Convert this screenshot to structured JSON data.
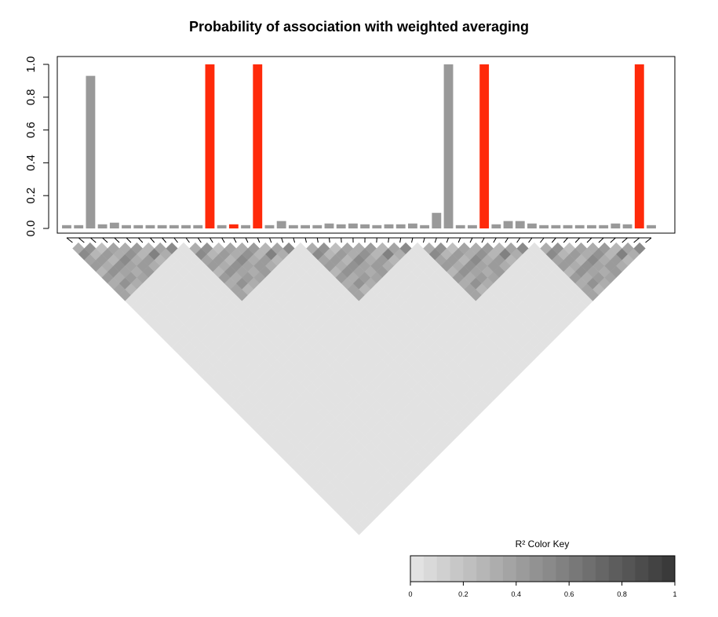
{
  "chart_data": [
    {
      "type": "bar",
      "title": "Probability of association with weighted averaging",
      "xlabel": "",
      "ylabel": "",
      "ylim": [
        0,
        1.0
      ],
      "y_ticks": [
        "0.0",
        "0.2",
        "0.4",
        "0.6",
        "0.8",
        "1.0"
      ],
      "colors": {
        "default": "#999999",
        "highlight": "#FF2A0A"
      },
      "values": [
        0.02,
        0.02,
        0.93,
        0.025,
        0.035,
        0.02,
        0.02,
        0.02,
        0.02,
        0.02,
        0.02,
        0.02,
        1.0,
        0.02,
        0.025,
        0.02,
        1.0,
        0.02,
        0.045,
        0.02,
        0.02,
        0.02,
        0.03,
        0.025,
        0.03,
        0.025,
        0.02,
        0.025,
        0.025,
        0.03,
        0.02,
        0.095,
        1.0,
        0.02,
        0.02,
        1.0,
        0.025,
        0.045,
        0.045,
        0.03,
        0.02,
        0.02,
        0.02,
        0.02,
        0.02,
        0.02,
        0.03,
        0.025,
        1.0,
        0.02
      ],
      "highlight": [
        false,
        false,
        false,
        false,
        false,
        false,
        false,
        false,
        false,
        false,
        false,
        false,
        true,
        false,
        true,
        false,
        true,
        false,
        false,
        false,
        false,
        false,
        false,
        false,
        false,
        false,
        false,
        false,
        false,
        false,
        false,
        false,
        false,
        false,
        false,
        true,
        false,
        false,
        false,
        false,
        false,
        false,
        false,
        false,
        false,
        false,
        false,
        false,
        true,
        false
      ]
    },
    {
      "type": "heatmap",
      "n_snps": 50,
      "blocks": [
        {
          "start": 0,
          "end": 9
        },
        {
          "start": 10,
          "end": 19
        },
        {
          "start": 20,
          "end": 29
        },
        {
          "start": 30,
          "end": 39
        },
        {
          "start": 40,
          "end": 49
        }
      ],
      "within_block_r2": [
        [
          0.32,
          0.45,
          0.22,
          0.38,
          0.3,
          0.42,
          0.25,
          0.35,
          0.52
        ],
        [
          0.5,
          0.28,
          0.4,
          0.33,
          0.47,
          0.26,
          0.55,
          0.31
        ],
        [
          0.36,
          0.44,
          0.29,
          0.51,
          0.34,
          0.4,
          0.27
        ],
        [
          0.41,
          0.3,
          0.48,
          0.35,
          0.43,
          0.32
        ],
        [
          0.28,
          0.46,
          0.38,
          0.3,
          0.44
        ],
        [
          0.43,
          0.33,
          0.41,
          0.36
        ],
        [
          0.31,
          0.45,
          0.34
        ],
        [
          0.39,
          0.29
        ],
        [
          0.35
        ]
      ],
      "between_block_r2": 0.04,
      "color_key": {
        "title": "R² Color Key",
        "ticks": [
          "0",
          "0.2",
          "0.4",
          "0.6",
          "0.8",
          "1"
        ],
        "n_levels": 20,
        "color_low": "#E2E2E2",
        "color_high": "#3A3A3A"
      }
    }
  ]
}
